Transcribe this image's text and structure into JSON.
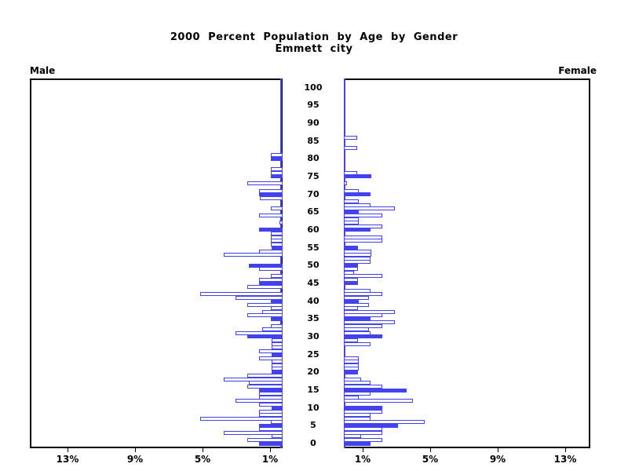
{
  "title": {
    "line1": "2000 Percent Population by Age by Gender",
    "line2": "Emmett city"
  },
  "panels": {
    "male_label": "Male",
    "female_label": "Female"
  },
  "age_axis_labels": [
    "0",
    "5",
    "10",
    "15",
    "20",
    "25",
    "30",
    "35",
    "40",
    "45",
    "50",
    "55",
    "60",
    "65",
    "70",
    "75",
    "80",
    "85",
    "90",
    "95",
    "100"
  ],
  "pct_axis": {
    "male_labels": [
      "13%",
      "9%",
      "5%",
      "1%"
    ],
    "female_labels": [
      "1%",
      "5%",
      "9%",
      "13%"
    ]
  },
  "colors": {
    "bar_blue": "#4343ee",
    "axis_blue": "#4343ee",
    "frame_black": "#000000",
    "bar_fill_white": "#ffffff"
  },
  "chart_data": {
    "type": "bar",
    "variant": "population-pyramid",
    "title": "2000 Percent Population by Age by Gender",
    "subtitle": "Emmett city",
    "unit": "percent of total population",
    "age_min": 0,
    "age_max": 100,
    "xlim_pct": [
      0,
      15
    ],
    "ticks_pct": [
      1,
      5,
      9,
      13
    ],
    "grid": false,
    "highlight_rule": "bars at ages divisible by 5 are solid blue; other ages are white with blue outline",
    "series": [
      {
        "name": "Male",
        "side": "left",
        "ages_start_at": 0,
        "values": [
          1.4,
          2.1,
          0.65,
          3.5,
          1.4,
          1.4,
          0.7,
          4.9,
          1.4,
          1.4,
          0.65,
          1.4,
          2.8,
          1.4,
          1.4,
          1.4,
          2.1,
          2.0,
          3.5,
          2.1,
          0.65,
          0.65,
          0.65,
          0.65,
          1.4,
          0.65,
          1.4,
          0.65,
          0.65,
          0.65,
          2.1,
          2.8,
          1.2,
          0.7,
          0,
          0.7,
          2.1,
          1.2,
          0.7,
          2.1,
          0.7,
          2.8,
          4.9,
          0,
          2.1,
          1.4,
          1.4,
          0.7,
          0,
          1.4,
          2.0,
          0,
          0,
          3.5,
          1.4,
          0.65,
          0.7,
          0.7,
          0.7,
          0.7,
          1.4,
          0,
          0.2,
          0,
          1.4,
          0,
          0.7,
          0,
          0,
          1.35,
          1.4,
          1.4,
          0,
          2.1,
          0,
          0.7,
          0.7,
          0.7,
          0,
          0,
          0.7,
          0.7,
          0,
          0,
          0,
          0,
          0
        ]
      },
      {
        "name": "Female",
        "side": "right",
        "ages_start_at": 0,
        "values": [
          1.6,
          2.3,
          1.0,
          2.3,
          2.3,
          3.2,
          4.8,
          1.6,
          1.6,
          2.3,
          2.3,
          0,
          4.1,
          0.9,
          1.6,
          3.7,
          2.3,
          1.6,
          1.0,
          0,
          0.85,
          0.9,
          0.9,
          0.9,
          0.9,
          0,
          0,
          0,
          1.6,
          0.85,
          2.3,
          1.6,
          1.5,
          2.3,
          3.0,
          1.6,
          2.3,
          3.0,
          0.85,
          1.5,
          0.9,
          1.5,
          2.3,
          1.6,
          0,
          0.85,
          0.85,
          2.3,
          0.6,
          0.85,
          0.85,
          1.6,
          1.6,
          1.65,
          1.65,
          0.85,
          0,
          2.3,
          2.3,
          0,
          1.6,
          2.3,
          0.9,
          0.9,
          2.3,
          0.9,
          3.0,
          1.6,
          0.9,
          0,
          1.6,
          0.9,
          0,
          0.2,
          0,
          1.65,
          0.8,
          0,
          0,
          0,
          0,
          0,
          0,
          0.8,
          0,
          0,
          0.8
        ]
      }
    ]
  }
}
